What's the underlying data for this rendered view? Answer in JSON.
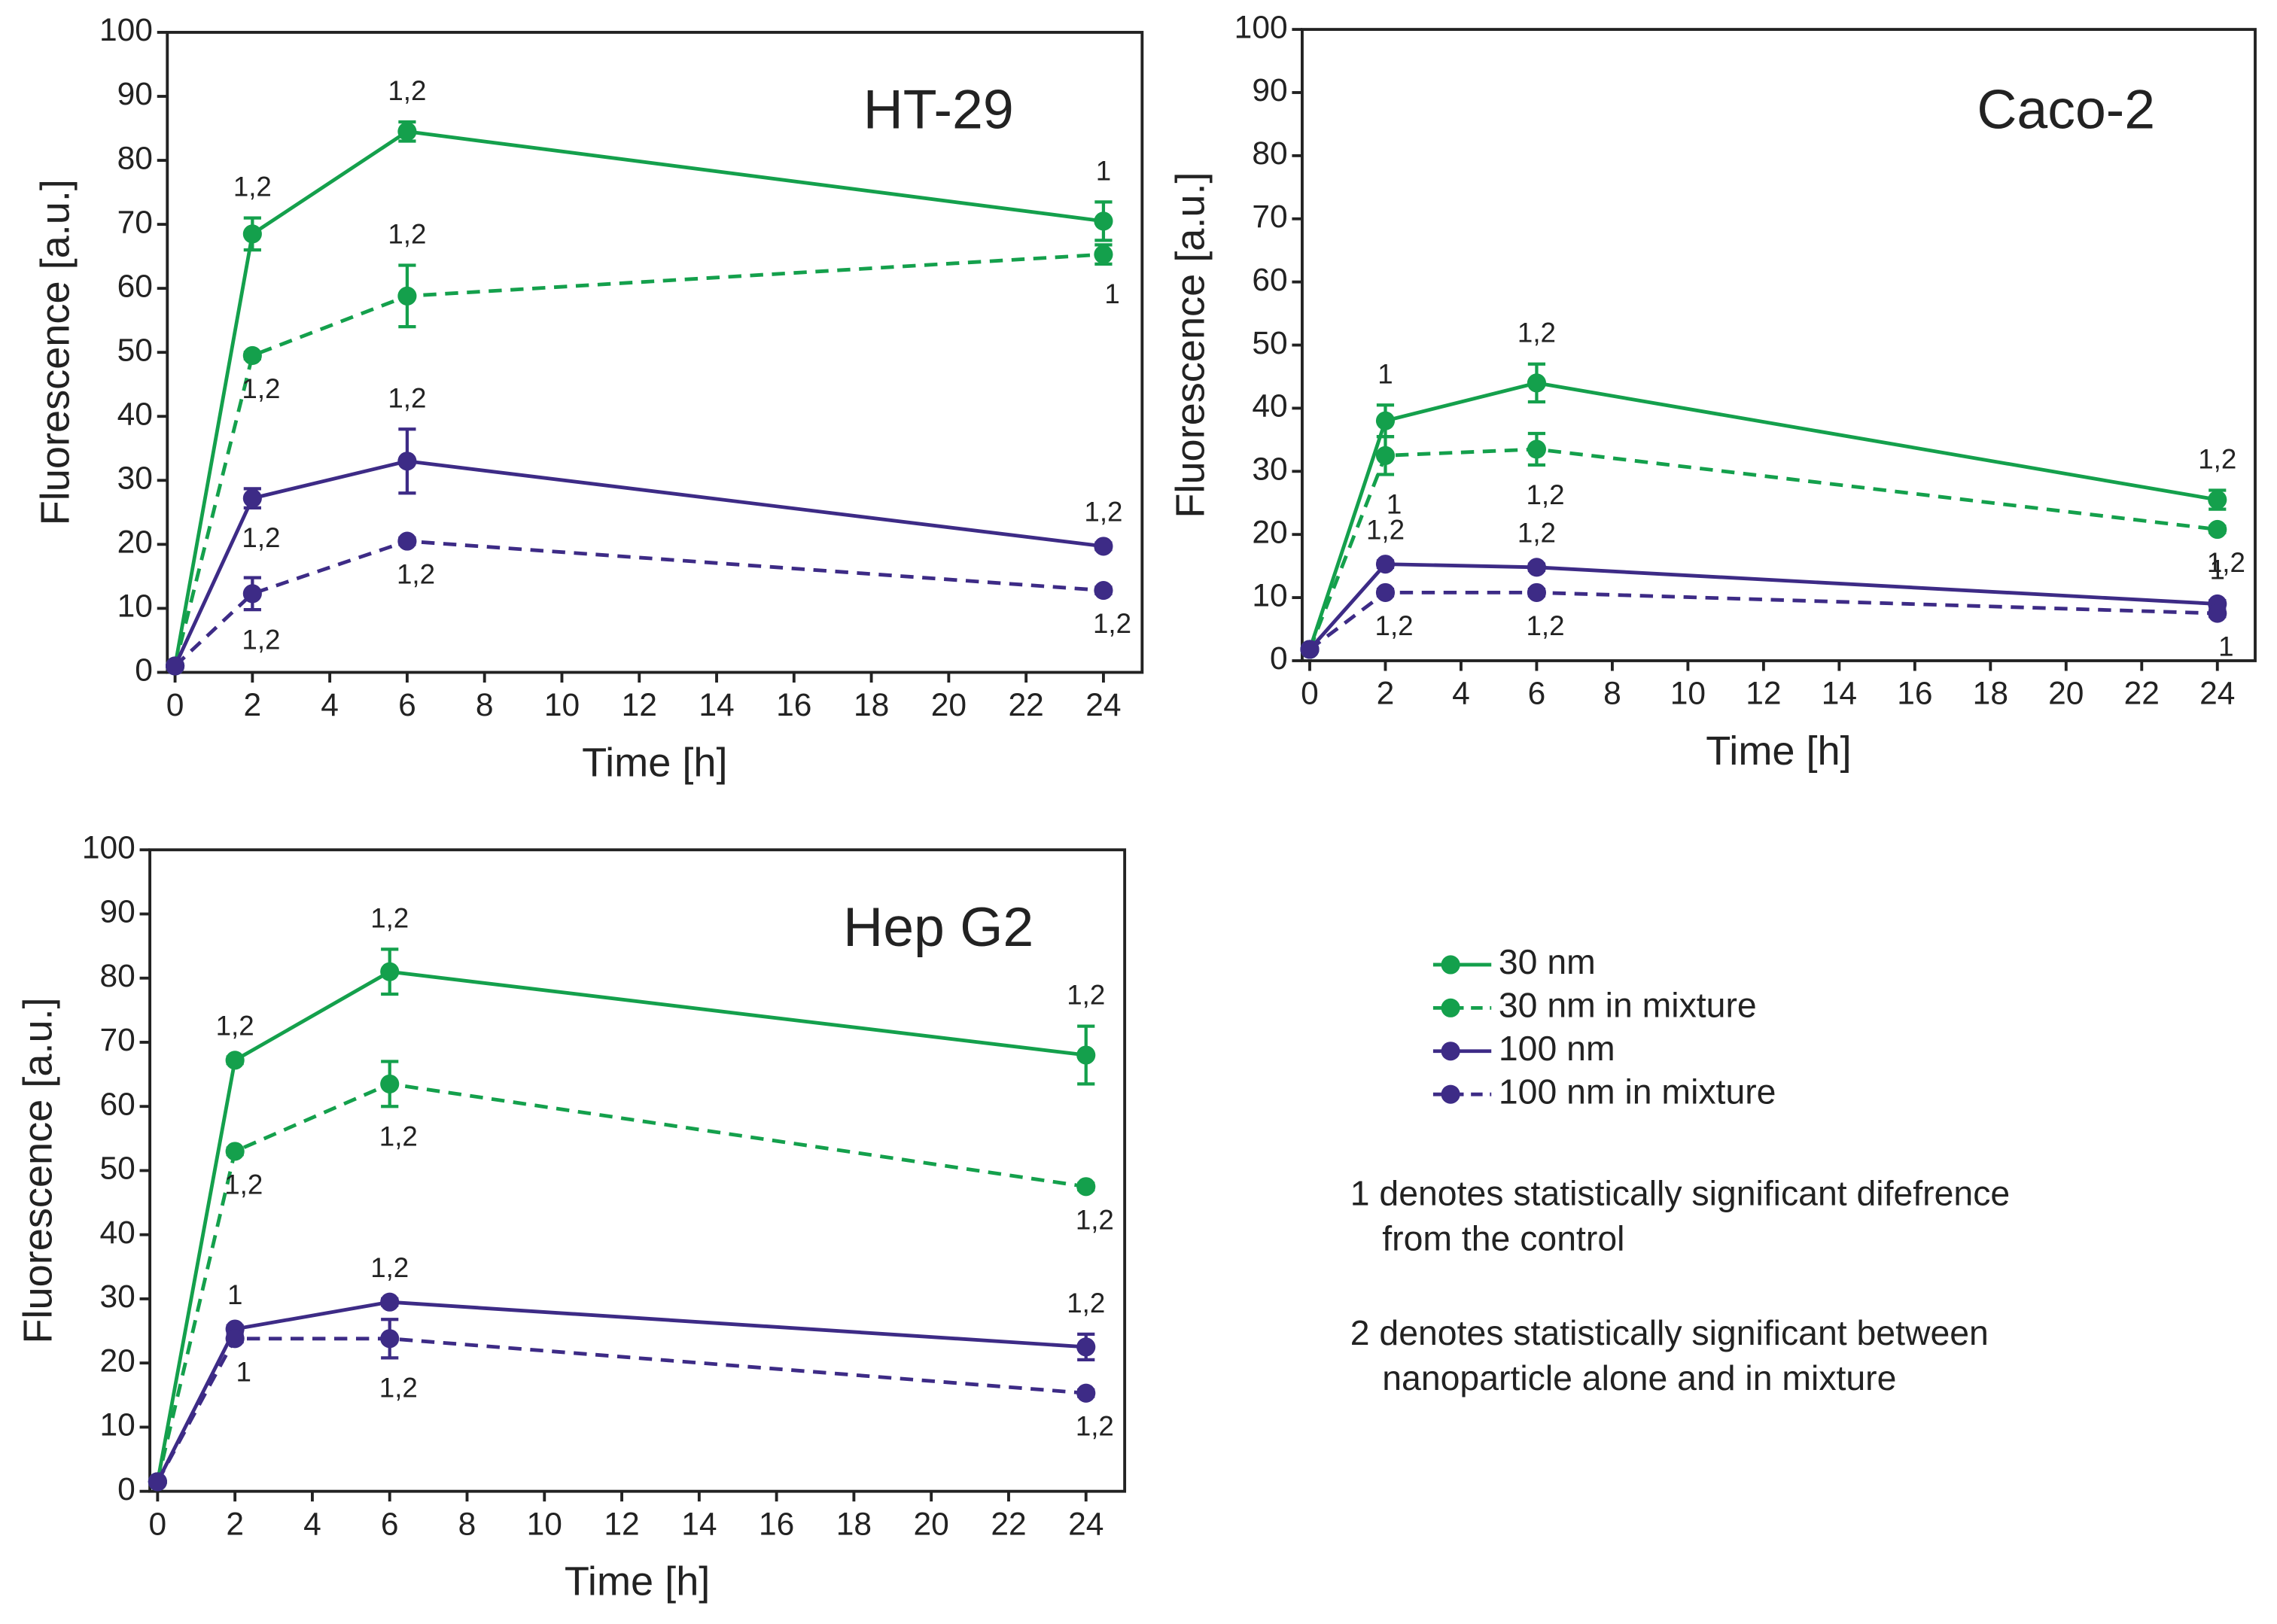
{
  "chart_data": [
    {
      "type": "line",
      "title": "HT-29",
      "x_label": "Time [h]",
      "y_label": "Fluorescence [a.u.]",
      "x": [
        0,
        2,
        6,
        24
      ],
      "xlim": [
        -0.2,
        25
      ],
      "xticks": [
        0,
        2,
        4,
        6,
        8,
        10,
        12,
        14,
        16,
        18,
        20,
        22,
        24
      ],
      "ylim": [
        0,
        100
      ],
      "yticks": [
        0,
        10,
        20,
        30,
        40,
        50,
        60,
        70,
        80,
        90,
        100
      ],
      "series": [
        {
          "name": "30 nm",
          "color": "#14a04c",
          "dashed": false,
          "values": [
            1,
            68.5,
            84.5,
            70.5
          ],
          "errors": [
            0,
            2.5,
            1.5,
            3
          ],
          "annotations": [
            null,
            "1,2",
            "1,2",
            "1"
          ]
        },
        {
          "name": "30 nm in mixture",
          "color": "#14a04c",
          "dashed": true,
          "values": [
            1,
            49.5,
            58.8,
            65.3
          ],
          "errors": [
            0,
            0.5,
            4.8,
            1.5
          ],
          "annotations": [
            null,
            "1,2",
            "1,2",
            "1"
          ]
        },
        {
          "name": "100 nm",
          "color": "#3d2b86",
          "dashed": false,
          "values": [
            1,
            27.2,
            33,
            19.7
          ],
          "errors": [
            0,
            1.5,
            5,
            0.5
          ],
          "annotations": [
            null,
            "1,2",
            "1,2",
            "1,2"
          ]
        },
        {
          "name": "100 nm in mixture",
          "color": "#3d2b86",
          "dashed": true,
          "values": [
            1,
            12.3,
            20.5,
            12.8
          ],
          "errors": [
            0,
            2.5,
            0.5,
            0.5
          ],
          "annotations": [
            null,
            "1,2",
            "1,2",
            "1,2"
          ]
        }
      ]
    },
    {
      "type": "line",
      "title": "Caco-2",
      "x_label": "Time [h]",
      "y_label": "Fluorescence [a.u.]",
      "x": [
        0,
        2,
        6,
        24
      ],
      "xlim": [
        -0.2,
        25
      ],
      "xticks": [
        0,
        2,
        4,
        6,
        8,
        10,
        12,
        14,
        16,
        18,
        20,
        22,
        24
      ],
      "ylim": [
        0,
        100
      ],
      "yticks": [
        0,
        10,
        20,
        30,
        40,
        50,
        60,
        70,
        80,
        90,
        100
      ],
      "series": [
        {
          "name": "30 nm",
          "color": "#14a04c",
          "dashed": false,
          "values": [
            1.8,
            38,
            44,
            25.5
          ],
          "errors": [
            0,
            2.5,
            3,
            1.5
          ],
          "annotations": [
            null,
            "1",
            "1,2",
            "1,2"
          ]
        },
        {
          "name": "30 nm in mixture",
          "color": "#14a04c",
          "dashed": true,
          "values": [
            1.8,
            32.5,
            33.5,
            20.8
          ],
          "errors": [
            0,
            3,
            2.5,
            0.5
          ],
          "annotations": [
            null,
            "1",
            "1,2",
            "1,2"
          ]
        },
        {
          "name": "100 nm",
          "color": "#3d2b86",
          "dashed": false,
          "values": [
            1.8,
            15.3,
            14.8,
            9
          ],
          "errors": [
            0,
            0.5,
            0.5,
            0.5
          ],
          "annotations": [
            null,
            "1,2",
            "1,2",
            "1"
          ]
        },
        {
          "name": "100 nm in mixture",
          "color": "#3d2b86",
          "dashed": true,
          "values": [
            1.8,
            10.8,
            10.8,
            7.5
          ],
          "errors": [
            0,
            0.5,
            0.5,
            0.5
          ],
          "annotations": [
            null,
            "1,2",
            "1,2",
            "1"
          ]
        }
      ]
    },
    {
      "type": "line",
      "title": "Hep G2",
      "x_label": "Time [h]",
      "y_label": "Fluorescence [a.u.]",
      "x": [
        0,
        2,
        6,
        24
      ],
      "xlim": [
        -0.2,
        25
      ],
      "xticks": [
        0,
        2,
        4,
        6,
        8,
        10,
        12,
        14,
        16,
        18,
        20,
        22,
        24
      ],
      "ylim": [
        0,
        100
      ],
      "yticks": [
        0,
        10,
        20,
        30,
        40,
        50,
        60,
        70,
        80,
        90,
        100
      ],
      "series": [
        {
          "name": "30 nm",
          "color": "#14a04c",
          "dashed": false,
          "values": [
            1.5,
            67.2,
            81,
            68
          ],
          "errors": [
            0,
            0.5,
            3.5,
            4.5
          ],
          "annotations": [
            null,
            "1,2",
            "1,2",
            "1,2"
          ]
        },
        {
          "name": "30 nm in mixture",
          "color": "#14a04c",
          "dashed": true,
          "values": [
            1.5,
            53,
            63.5,
            47.5
          ],
          "errors": [
            0,
            0.5,
            3.5,
            0.5
          ],
          "annotations": [
            null,
            "1,2",
            "1,2",
            "1,2"
          ]
        },
        {
          "name": "100 nm",
          "color": "#3d2b86",
          "dashed": false,
          "values": [
            1.5,
            25.3,
            29.5,
            22.5
          ],
          "errors": [
            0,
            0.5,
            0.5,
            2
          ],
          "annotations": [
            null,
            "1",
            "1,2",
            "1,2"
          ]
        },
        {
          "name": "100 nm in mixture",
          "color": "#3d2b86",
          "dashed": true,
          "values": [
            1.5,
            23.8,
            23.8,
            15.3
          ],
          "errors": [
            0,
            0.5,
            3,
            0.5
          ],
          "annotations": [
            null,
            "1",
            "1,2",
            "1,2"
          ]
        }
      ]
    }
  ],
  "notes": [
    {
      "lines": [
        "1 denotes statistically significant difefrence",
        "from the control"
      ]
    },
    {
      "lines": [
        "2 denotes  statistically significant between",
        "nanoparticle alone and in mixture"
      ]
    }
  ]
}
